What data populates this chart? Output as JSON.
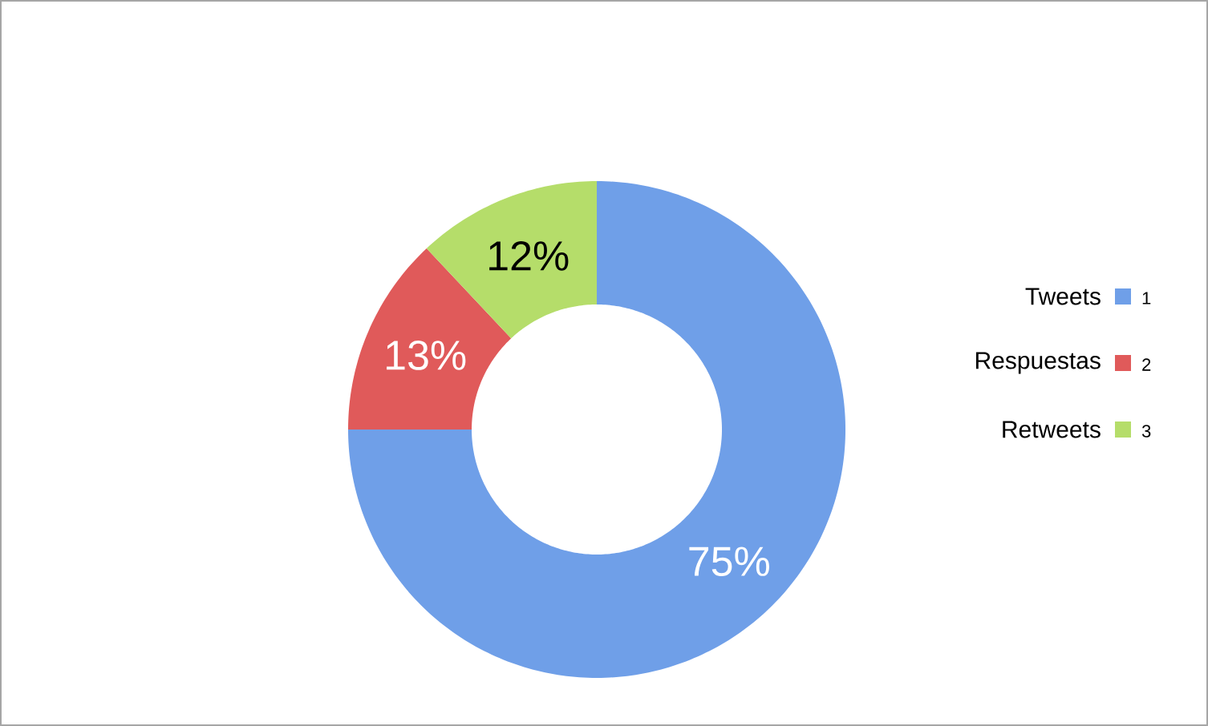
{
  "chart_data": {
    "type": "donut",
    "categories": [
      "Tweets",
      "Respuestas",
      "Retweets"
    ],
    "values": [
      75,
      13,
      12
    ],
    "colors": [
      "#6f9fe8",
      "#e05a5a",
      "#b5dd6a"
    ],
    "value_labels": [
      "75%",
      "13%",
      "12%"
    ],
    "legend": "right",
    "annotations": [
      "1",
      "2",
      "3"
    ]
  }
}
